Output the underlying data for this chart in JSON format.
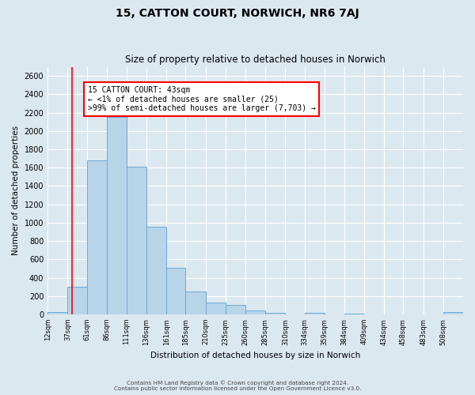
{
  "title": "15, CATTON COURT, NORWICH, NR6 7AJ",
  "subtitle": "Size of property relative to detached houses in Norwich",
  "xlabel": "Distribution of detached houses by size in Norwich",
  "ylabel": "Number of detached properties",
  "bar_color": "#b8d4e8",
  "bar_edge_color": "#6aaad4",
  "background_color": "#dce8f0",
  "fig_background": "#dce8f0",
  "categories": [
    "12sqm",
    "37sqm",
    "61sqm",
    "86sqm",
    "111sqm",
    "136sqm",
    "161sqm",
    "185sqm",
    "210sqm",
    "235sqm",
    "260sqm",
    "285sqm",
    "310sqm",
    "334sqm",
    "359sqm",
    "384sqm",
    "409sqm",
    "434sqm",
    "458sqm",
    "483sqm",
    "508sqm"
  ],
  "bin_edges": [
    12,
    37,
    61,
    86,
    111,
    136,
    161,
    185,
    210,
    235,
    260,
    285,
    310,
    334,
    359,
    384,
    409,
    434,
    458,
    483,
    508,
    533
  ],
  "values": [
    25,
    300,
    1680,
    2150,
    1610,
    960,
    510,
    245,
    125,
    100,
    40,
    20,
    0,
    15,
    0,
    10,
    0,
    0,
    0,
    0,
    25
  ],
  "ylim": [
    0,
    2700
  ],
  "yticks": [
    0,
    200,
    400,
    600,
    800,
    1000,
    1200,
    1400,
    1600,
    1800,
    2000,
    2200,
    2400,
    2600
  ],
  "red_line_x": 43,
  "annotation_title": "15 CATTON COURT: 43sqm",
  "annotation_line1": "← <1% of detached houses are smaller (25)",
  "annotation_line2": ">99% of semi-detached houses are larger (7,703) →",
  "footer_line1": "Contains HM Land Registry data © Crown copyright and database right 2024.",
  "footer_line2": "Contains public sector information licensed under the Open Government Licence v3.0."
}
